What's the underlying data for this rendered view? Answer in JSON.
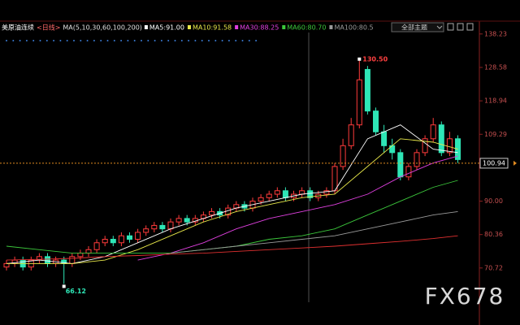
{
  "header": {
    "symbol": "美原油连续",
    "period": "<日线>",
    "indicator": "MA(5,10,30,60,100,200)",
    "dropdown": "全部主题"
  },
  "chart_data": {
    "type": "candlestick",
    "open": [
      71,
      72,
      73,
      71,
      73,
      74,
      72,
      73,
      72,
      74,
      75,
      76,
      78,
      79,
      78,
      80,
      79,
      81,
      82,
      83,
      82,
      84,
      85,
      84,
      85,
      86,
      87,
      86,
      88,
      89,
      88,
      90,
      91,
      92,
      93,
      91,
      92,
      93,
      91,
      92,
      93,
      100,
      106,
      112,
      128,
      116,
      110,
      106,
      104,
      97,
      100,
      104,
      108,
      112,
      104,
      108
    ],
    "high": [
      73,
      74,
      74,
      74,
      75,
      75,
      74,
      74,
      75,
      76,
      77,
      79,
      80,
      80,
      81,
      81,
      82,
      83,
      84,
      84,
      85,
      86,
      86,
      86,
      87,
      88,
      88,
      89,
      90,
      90,
      91,
      92,
      93,
      94,
      94,
      93,
      94,
      94,
      93,
      94,
      101,
      108,
      114,
      130.5,
      129,
      117,
      112,
      108,
      105,
      101,
      105,
      109,
      114,
      113,
      110,
      109
    ],
    "low": [
      70,
      71,
      70,
      70,
      72,
      71,
      71,
      66.12,
      71,
      73,
      74,
      75,
      77,
      77,
      77,
      78,
      78,
      80,
      81,
      81,
      81,
      83,
      83,
      83,
      84,
      85,
      85,
      85,
      87,
      87,
      87,
      89,
      90,
      91,
      90,
      90,
      91,
      90,
      90,
      91,
      92,
      99,
      105,
      111,
      115,
      109,
      104,
      102,
      96,
      96,
      99,
      103,
      107,
      103,
      103,
      101
    ],
    "close": [
      72,
      73,
      71,
      73,
      74,
      72,
      73,
      72,
      74,
      75,
      76,
      78,
      79,
      78,
      80,
      79,
      81,
      82,
      83,
      82,
      84,
      85,
      84,
      85,
      86,
      87,
      86,
      88,
      89,
      88,
      90,
      91,
      92,
      93,
      91,
      92,
      93,
      91,
      92,
      93,
      100,
      106,
      112,
      125,
      116,
      110,
      106,
      104,
      97,
      100,
      104,
      108,
      112,
      104,
      108,
      102
    ],
    "up_color": "#ff3b3b",
    "down_color": "#2ee6b6",
    "ma_x": [
      0,
      4,
      8,
      12,
      16,
      20,
      24,
      28,
      32,
      36,
      40,
      44,
      48,
      52,
      55
    ],
    "series": [
      {
        "name": "MA5:91.00",
        "color": "#ffffff",
        "values": [
          72,
          73,
          72,
          74,
          78,
          82,
          85,
          88,
          90,
          92,
          93,
          108,
          112,
          105,
          104
        ]
      },
      {
        "name": "MA10:91.58",
        "color": "#e8e84a",
        "values": [
          72,
          72,
          72,
          73,
          76,
          80,
          84,
          87,
          89,
          91,
          92,
          100,
          108,
          107,
          105
        ]
      },
      {
        "name": "MA30:88.25",
        "color": "#e040e0",
        "values": [
          null,
          null,
          null,
          null,
          73,
          75,
          78,
          82,
          85,
          87,
          89,
          92,
          97,
          101,
          103
        ]
      },
      {
        "name": "MA60:80.70",
        "color": "#3cc83c",
        "values": [
          77,
          76,
          75,
          75,
          75,
          75,
          76,
          77,
          79,
          80,
          82,
          86,
          90,
          94,
          96
        ]
      },
      {
        "name": "MA100:80.5",
        "color": "#9a9a9a",
        "values": [
          null,
          null,
          null,
          null,
          null,
          75,
          76,
          77,
          78,
          79,
          80,
          82,
          84,
          86,
          87
        ]
      },
      {
        "color": "#e03030",
        "values": [
          73,
          73.2,
          73.5,
          74,
          74.3,
          74.7,
          75,
          75.5,
          76,
          76.5,
          77,
          77.7,
          78.4,
          79.2,
          80
        ]
      }
    ],
    "ylim": [
      61.3,
      141
    ],
    "yticks": [
      138.23,
      128.58,
      118.94,
      109.29,
      {
        "value": 90,
        "label": "90.00"
      },
      80.36,
      70.72
    ],
    "current_price": 100.94,
    "annotations": [
      {
        "value": 130.5,
        "label": "130.50"
      },
      66.12
    ],
    "watermark": "FX678"
  }
}
